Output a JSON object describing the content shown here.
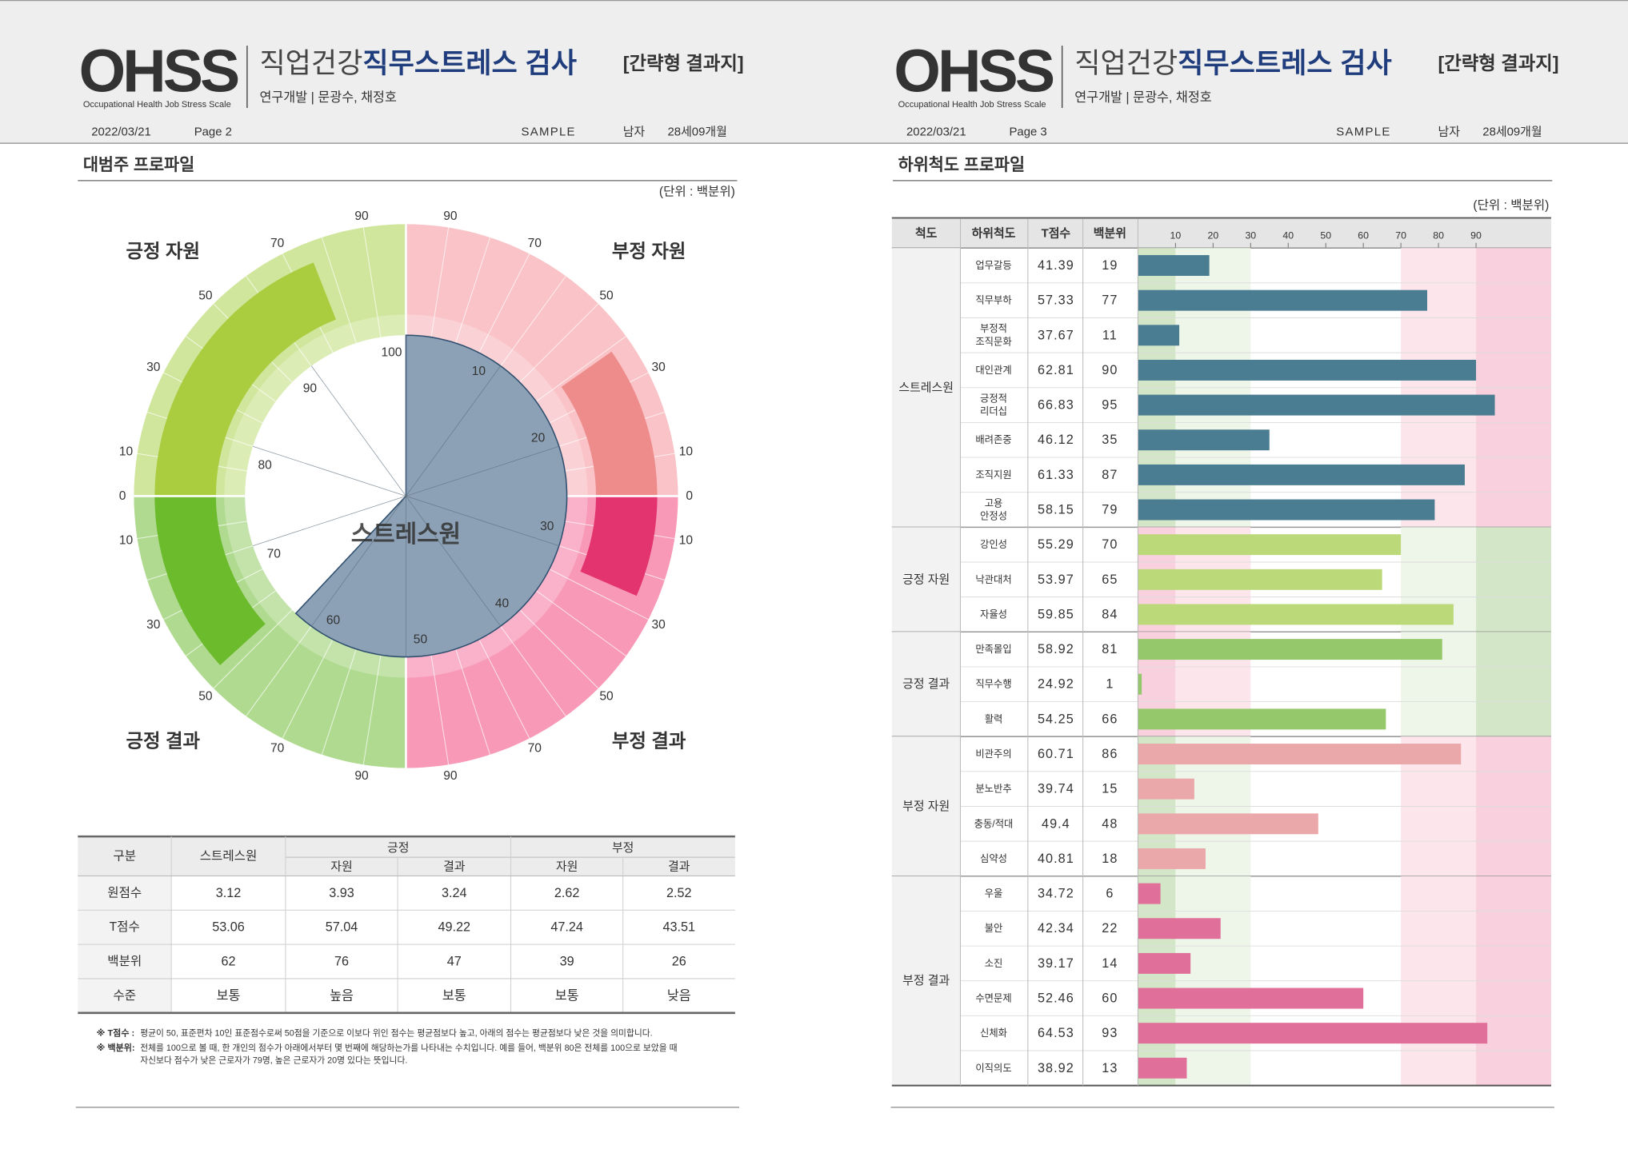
{
  "pages": [
    {
      "header": {
        "logo": "OHSS",
        "logo_sub": "Occupational Health Job Stress Scale",
        "title_light": "직업건강",
        "title_bold": "직무스트레스 검사",
        "badge": "[간략형 결과지]",
        "credit": "연구개발 | 문광수, 채정호",
        "date": "2022/03/21",
        "page": "Page 2",
        "name": "SAMPLE",
        "sex": "남자",
        "age": "28세09개월"
      },
      "section_title": "대범주 프로파일",
      "unit": "(단위 : 백분위)"
    },
    {
      "header": {
        "logo": "OHSS",
        "logo_sub": "Occupational Health Job Stress Scale",
        "title_light": "직업건강",
        "title_bold": "직무스트레스 검사",
        "badge": "[간략형 결과지]",
        "credit": "연구개발 | 문광수, 채정호",
        "date": "2022/03/21",
        "page": "Page 3",
        "name": "SAMPLE",
        "sex": "남자",
        "age": "28세09개월"
      },
      "section_title": "하위척도 프로파일",
      "unit": "(단위 : 백분위)"
    }
  ],
  "chart_data": [
    {
      "type": "polar",
      "center_label": "스트레스원",
      "center_value": 62,
      "center_lim": [
        0,
        100
      ],
      "center_ticks": [
        10,
        20,
        30,
        40,
        50,
        60,
        70,
        80,
        90,
        100
      ],
      "center_color": "#8ca1b6",
      "categories": [
        "긍정 자원",
        "부정 자원",
        "부정 결과",
        "긍정 결과"
      ],
      "values": [
        76,
        39,
        26,
        47
      ],
      "ring_colors": [
        "#d0e69c",
        "#f9c3c7",
        "#f799b7",
        "#afda8f"
      ],
      "bar_colors": [
        "#a9cd3e",
        "#ee8b8b",
        "#e3346f",
        "#6cbb2c"
      ],
      "ring_lim": [
        0,
        100
      ],
      "ring_ticks": [
        0,
        10,
        30,
        50,
        70,
        90
      ]
    },
    {
      "type": "bar",
      "orientation": "horizontal",
      "columns": [
        "척도",
        "하위척도",
        "T점수",
        "백분위"
      ],
      "xlim": [
        0,
        110
      ],
      "xticks": [
        10,
        20,
        30,
        40,
        50,
        60,
        70,
        80,
        90
      ],
      "band_colors": [
        "#d3e6c8",
        "#eef5e9",
        "#fce6ec",
        "#f9d0dd"
      ],
      "groups": [
        {
          "name": "스트레스원",
          "color": "#4b7d92",
          "reversed": false,
          "items": [
            {
              "name": [
                "업무갈등"
              ],
              "t_score": 41.39,
              "percentile": 19
            },
            {
              "name": [
                "직무부하"
              ],
              "t_score": 57.33,
              "percentile": 77
            },
            {
              "name": [
                "부정적",
                "조직문화"
              ],
              "t_score": 37.67,
              "percentile": 11
            },
            {
              "name": [
                "대인관계"
              ],
              "t_score": 62.81,
              "percentile": 90
            },
            {
              "name": [
                "긍정적",
                "리더십"
              ],
              "t_score": 66.83,
              "percentile": 95
            },
            {
              "name": [
                "배려존중"
              ],
              "t_score": 46.12,
              "percentile": 35
            },
            {
              "name": [
                "조직지원"
              ],
              "t_score": 61.33,
              "percentile": 87
            },
            {
              "name": [
                "고용",
                "안정성"
              ],
              "t_score": 58.15,
              "percentile": 79
            }
          ]
        },
        {
          "name": "긍정 자원",
          "color": "#bcd97a",
          "reversed": true,
          "items": [
            {
              "name": [
                "강인성"
              ],
              "t_score": 55.29,
              "percentile": 70
            },
            {
              "name": [
                "낙관대처"
              ],
              "t_score": 53.97,
              "percentile": 65
            },
            {
              "name": [
                "자율성"
              ],
              "t_score": 59.85,
              "percentile": 84
            }
          ]
        },
        {
          "name": "긍정 결과",
          "color": "#95c86a",
          "reversed": true,
          "items": [
            {
              "name": [
                "만족몰입"
              ],
              "t_score": 58.92,
              "percentile": 81
            },
            {
              "name": [
                "직무수행"
              ],
              "t_score": 24.92,
              "percentile": 1
            },
            {
              "name": [
                "활력"
              ],
              "t_score": 54.25,
              "percentile": 66
            }
          ]
        },
        {
          "name": "부정 자원",
          "color": "#eba8aa",
          "reversed": false,
          "items": [
            {
              "name": [
                "비관주의"
              ],
              "t_score": 60.71,
              "percentile": 86
            },
            {
              "name": [
                "분노반추"
              ],
              "t_score": 39.74,
              "percentile": 15
            },
            {
              "name": [
                "충동/적대"
              ],
              "t_score": 49.4,
              "percentile": 48
            },
            {
              "name": [
                "심약성"
              ],
              "t_score": 40.81,
              "percentile": 18
            }
          ]
        },
        {
          "name": "부정 결과",
          "color": "#e07099",
          "reversed": false,
          "items": [
            {
              "name": [
                "우울"
              ],
              "t_score": 34.72,
              "percentile": 6
            },
            {
              "name": [
                "불안"
              ],
              "t_score": 42.34,
              "percentile": 22
            },
            {
              "name": [
                "소진"
              ],
              "t_score": 39.17,
              "percentile": 14
            },
            {
              "name": [
                "수면문제"
              ],
              "t_score": 52.46,
              "percentile": 60
            },
            {
              "name": [
                "신체화"
              ],
              "t_score": 64.53,
              "percentile": 93
            },
            {
              "name": [
                "이직의도"
              ],
              "t_score": 38.92,
              "percentile": 13
            }
          ]
        }
      ]
    }
  ],
  "table": {
    "header": {
      "label": "구분",
      "stress": "스트레스원",
      "groups": [
        {
          "name": "긍정",
          "columns": [
            "자원",
            "결과"
          ]
        },
        {
          "name": "부정",
          "columns": [
            "자원",
            "결과"
          ]
        }
      ]
    },
    "rows": [
      {
        "label": "원점수",
        "cells": [
          3.12,
          3.93,
          3.24,
          2.62,
          2.52
        ]
      },
      {
        "label": "T점수",
        "cells": [
          53.06,
          57.04,
          49.22,
          47.24,
          43.51
        ]
      },
      {
        "label": "백분위",
        "cells": [
          62,
          76,
          47,
          39,
          26
        ]
      },
      {
        "label": "수준",
        "cells": [
          "보통",
          "높음",
          "보통",
          "보통",
          "낮음"
        ]
      }
    ]
  },
  "notes": [
    {
      "label": "※ T점수 :",
      "lines": [
        "평균이 50, 표준편차 10인 표준점수로써 50점을 기준으로 이보다 위인 점수는 평균점보다 높고, 아래의 점수는 평균점보다 낮은 것을 의미합니다."
      ]
    },
    {
      "label": "※ 백분위:",
      "lines": [
        "전체를 100으로 볼 때, 한 개인의 점수가 아래에서부터 몇 번째에 해당하는가를 나타내는 수치입니다. 예를 들어, 백분위 80은 전체를 100으로 보았을 때",
        "자신보다 점수가 낮은 근로자가 79명, 높은 근로자가 20명 있다는 뜻입니다."
      ]
    }
  ]
}
